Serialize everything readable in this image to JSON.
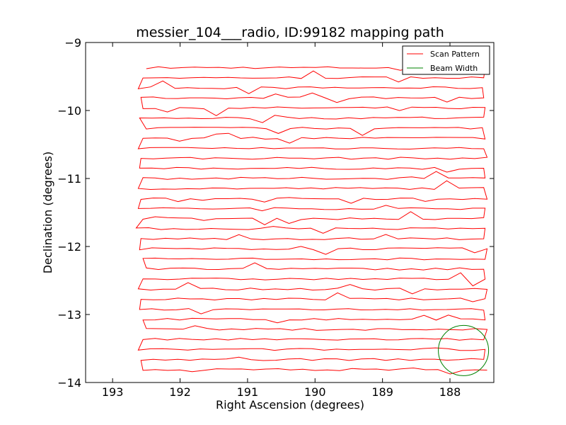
{
  "chart_data": {
    "type": "line",
    "title": "messier_104___radio, ID:99182 mapping path",
    "xlabel": "Right Ascension (degrees)",
    "ylabel": "Declination (degrees)",
    "xlim": [
      193.4,
      187.35
    ],
    "ylim": [
      -14,
      -9
    ],
    "x_inverted": true,
    "xticks": [
      193,
      192,
      191,
      190,
      189,
      188
    ],
    "xtick_labels": [
      "193",
      "192",
      "191",
      "190",
      "189",
      "188"
    ],
    "yticks": [
      -9,
      -10,
      -11,
      -12,
      -13,
      -14
    ],
    "ytick_labels": [
      "−9",
      "−10",
      "−11",
      "−12",
      "−13",
      "−14"
    ],
    "grid": false,
    "legend_placement": "top-right",
    "series": [
      {
        "name": "Scan Pattern",
        "color": "#ff0000",
        "style": "raster",
        "row_start_dec": -9.37,
        "row_step": -0.148,
        "rows": 31,
        "ra_low_end": [
          192.5,
          192.55,
          192.62,
          192.58,
          192.55,
          192.6,
          192.5,
          192.55,
          192.62,
          192.58,
          192.6,
          192.55,
          192.62,
          192.58,
          192.62,
          192.55,
          192.65,
          192.58,
          192.6,
          192.55,
          192.5,
          192.55,
          192.62,
          192.58,
          192.6,
          192.55,
          192.5,
          192.55,
          192.62,
          192.58,
          192.55
        ],
        "ra_high_end": [
          187.48,
          187.5,
          187.52,
          187.5,
          187.48,
          187.5,
          187.52,
          187.48,
          187.5,
          187.45,
          187.5,
          187.48,
          187.5,
          187.45,
          187.48,
          187.5,
          187.48,
          187.5,
          187.45,
          187.48,
          187.5,
          187.48,
          187.45,
          187.48,
          187.5,
          187.48,
          187.45,
          187.5,
          187.48,
          187.5,
          187.45
        ]
      },
      {
        "name": "Beam Width",
        "color": "#008000",
        "style": "circle",
        "center": [
          187.8,
          -13.53
        ],
        "radius_deg": 0.37
      }
    ]
  }
}
